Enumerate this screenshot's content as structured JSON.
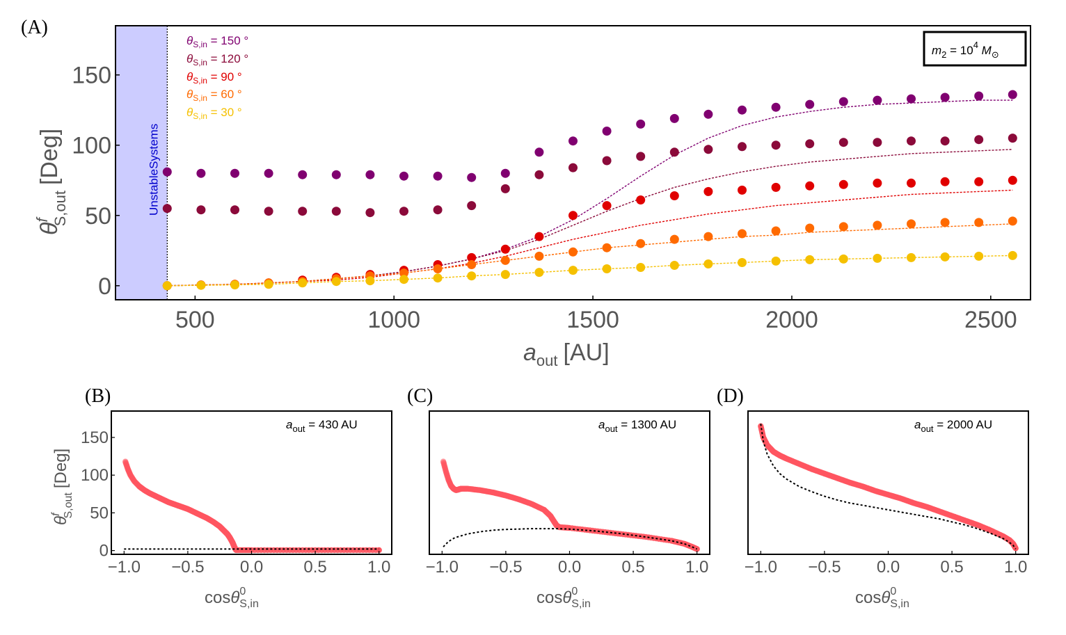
{
  "figure": {
    "panels": [
      {
        "id": "A",
        "label": "(A)"
      },
      {
        "id": "B",
        "label": "(B)"
      },
      {
        "id": "C",
        "label": "(C)"
      },
      {
        "id": "D",
        "label": "(D)"
      }
    ]
  },
  "chart_data": [
    {
      "panel": "A",
      "type": "scatter",
      "xlabel_main": "a",
      "xlabel_sub": "out",
      "xlabel_unit": "[AU]",
      "ylabel_main": "θ",
      "ylabel_sup": "f",
      "ylabel_sub": "S,out",
      "ylabel_unit": "[Deg]",
      "xlim": [
        300,
        2600
      ],
      "ylim": [
        -10,
        185
      ],
      "xticks": [
        500,
        1000,
        1500,
        2000,
        2500
      ],
      "yticks": [
        0,
        50,
        100,
        150
      ],
      "mass_label": {
        "prefix": "m",
        "sub": "2",
        "eq": " = 10",
        "sup": "4",
        "unit": " M",
        "unit_sub": "⊙"
      },
      "unstable_region": {
        "x_from": 300,
        "x_to": 430,
        "label": "UnstableSystems",
        "color": "#ccccff",
        "label_color": "#0000cc"
      },
      "x": [
        430,
        515,
        600,
        685,
        770,
        855,
        940,
        1025,
        1110,
        1195,
        1280,
        1365,
        1450,
        1535,
        1620,
        1705,
        1790,
        1875,
        1960,
        2045,
        2130,
        2215,
        2300,
        2385,
        2470,
        2555
      ],
      "series": [
        {
          "name": "150",
          "legend": "θS,in = 150 °",
          "leg_sym": "θ",
          "leg_sub": "S,in",
          "leg_val": " = 150 °",
          "color": "#800070",
          "values": [
            81,
            80,
            80,
            80,
            79,
            79,
            79,
            78,
            78,
            77,
            80,
            95,
            103,
            110,
            115,
            119,
            122,
            125,
            127,
            129,
            131,
            132,
            133,
            134,
            135,
            136
          ],
          "curve": [
            0,
            0.5,
            1,
            2,
            3,
            5,
            7,
            10,
            14,
            19,
            26,
            35,
            47,
            62,
            78,
            93,
            105,
            114,
            120,
            124,
            127,
            129,
            130,
            131,
            132,
            132
          ]
        },
        {
          "name": "120",
          "legend": "θS,in = 120 °",
          "leg_sym": "θ",
          "leg_sub": "S,in",
          "leg_val": " = 120 °",
          "color": "#8b0a3a",
          "values": [
            55,
            54,
            54,
            53,
            53,
            53,
            52,
            53,
            54,
            57,
            69,
            79,
            84,
            89,
            92,
            95,
            97,
            99,
            100,
            101,
            102,
            102,
            103,
            103,
            104,
            105
          ],
          "curve": [
            0,
            0.5,
            1,
            2,
            3,
            5,
            7,
            10,
            14,
            19,
            25,
            33,
            43,
            53,
            62,
            70,
            76,
            81,
            85,
            88,
            90,
            92,
            94,
            95,
            96,
            97
          ]
        },
        {
          "name": "90",
          "legend": "θS,in = 90 °",
          "leg_sym": "θ",
          "leg_sub": "S,in",
          "leg_val": " = 90 °",
          "color": "#e00000",
          "values": [
            0,
            0.5,
            1,
            2,
            4,
            6,
            8,
            11,
            15,
            20,
            26,
            35,
            50,
            57,
            61,
            64,
            67,
            68,
            70,
            71,
            72,
            73,
            73,
            74,
            74,
            75
          ],
          "curve": [
            0,
            0.5,
            1,
            2,
            3,
            4,
            6,
            9,
            12,
            16,
            21,
            27,
            33,
            38,
            43,
            47,
            51,
            54,
            57,
            59,
            61,
            63,
            65,
            66,
            67,
            68
          ]
        },
        {
          "name": "60",
          "legend": "θS,in = 60 °",
          "leg_sym": "θ",
          "leg_sub": "S,in",
          "leg_val": " = 60 °",
          "color": "#ff6a00",
          "values": [
            0,
            0.5,
            1,
            2,
            3,
            5,
            7,
            9,
            12,
            15,
            18,
            21,
            24,
            27,
            30,
            33,
            35,
            37,
            39,
            41,
            42,
            43,
            44,
            45,
            45,
            46
          ],
          "curve": [
            0,
            0.5,
            1,
            2,
            3,
            5,
            7,
            9,
            12,
            15,
            18,
            21,
            24,
            27,
            29,
            31,
            33,
            35,
            36,
            38,
            39,
            40,
            41,
            42,
            43,
            44
          ]
        },
        {
          "name": "30",
          "legend": "θS,in = 30 °",
          "leg_sym": "θ",
          "leg_sub": "S,in",
          "leg_val": " = 30 °",
          "color": "#f5c000",
          "values": [
            0,
            0.3,
            0.6,
            1,
            2,
            3,
            3.5,
            4.5,
            5.5,
            7,
            8,
            9.5,
            11,
            12,
            13,
            14.5,
            15.5,
            16.5,
            17.5,
            18.5,
            19,
            19.5,
            20,
            20.5,
            21,
            21.5
          ],
          "curve": [
            0,
            0.3,
            0.6,
            1,
            2,
            3,
            3.5,
            4.5,
            5.5,
            7,
            8,
            9.5,
            11,
            12,
            13,
            14.5,
            15.5,
            16.5,
            17.5,
            18.5,
            19,
            19.5,
            20,
            20.5,
            21,
            21.5
          ]
        }
      ]
    },
    {
      "panel": "B",
      "type": "scatter",
      "annotation_main": "a",
      "annotation_sub": "out",
      "annotation_val": " = 430 AU",
      "xlabel_main": "cos",
      "xlabel_sym": "θ",
      "xlabel_sup": "0",
      "xlabel_sub": "S,in",
      "ylabel_main": "θ",
      "ylabel_sup": "f",
      "ylabel_sub": "S,out",
      "ylabel_unit": "[Deg]",
      "xlim": [
        -1.1,
        1.1
      ],
      "ylim": [
        -5,
        185
      ],
      "xticks": [
        "−1.0",
        "−0.5",
        "0.0",
        "0.5",
        "1.0"
      ],
      "xtick_values": [
        -1.0,
        -0.5,
        0.0,
        0.5,
        1.0
      ],
      "yticks": [
        0,
        50,
        100,
        150
      ],
      "data_color": "#ff5560",
      "data_x": [
        -0.99,
        -0.97,
        -0.95,
        -0.92,
        -0.88,
        -0.84,
        -0.8,
        -0.75,
        -0.7,
        -0.65,
        -0.6,
        -0.55,
        -0.5,
        -0.45,
        -0.4,
        -0.35,
        -0.3,
        -0.25,
        -0.22,
        -0.19,
        -0.17,
        -0.15,
        -0.14,
        -0.13,
        -0.12,
        0.0,
        0.25,
        0.5,
        0.75,
        1.0
      ],
      "data_y": [
        118,
        108,
        100,
        92,
        85,
        80,
        76,
        72,
        68,
        64,
        61,
        58,
        55,
        51,
        47,
        43,
        38,
        32,
        27,
        22,
        17,
        11,
        7,
        3,
        0.5,
        0.5,
        0.5,
        0.5,
        0.5,
        0.5
      ],
      "theory_x": [
        -1.0,
        1.0
      ],
      "theory_y": [
        2,
        2
      ]
    },
    {
      "panel": "C",
      "type": "scatter",
      "annotation_main": "a",
      "annotation_sub": "out",
      "annotation_val": " = 1300 AU",
      "xlabel_main": "cos",
      "xlabel_sym": "θ",
      "xlabel_sup": "0",
      "xlabel_sub": "S,in",
      "xlim": [
        -1.1,
        1.1
      ],
      "ylim": [
        -5,
        185
      ],
      "xticks": [
        "−1.0",
        "−0.5",
        "0.0",
        "0.5",
        "1.0"
      ],
      "xtick_values": [
        -1.0,
        -0.5,
        0.0,
        0.5,
        1.0
      ],
      "data_color": "#ff5560",
      "data_x": [
        -0.99,
        -0.97,
        -0.95,
        -0.93,
        -0.91,
        -0.89,
        -0.87,
        -0.85,
        -0.8,
        -0.7,
        -0.6,
        -0.5,
        -0.4,
        -0.3,
        -0.2,
        -0.15,
        -0.12,
        -0.1,
        -0.08,
        0.0,
        0.2,
        0.4,
        0.6,
        0.8,
        0.9,
        0.96,
        1.0
      ],
      "data_y": [
        118,
        105,
        94,
        86,
        82,
        80,
        81,
        82,
        82,
        80,
        77,
        73,
        68,
        62,
        54,
        46,
        38,
        33,
        31,
        30,
        26,
        22,
        18,
        13,
        9,
        5,
        2
      ],
      "theory_x": [
        -0.99,
        -0.95,
        -0.9,
        -0.8,
        -0.7,
        -0.6,
        -0.5,
        -0.4,
        -0.3,
        -0.2,
        -0.1,
        0.0,
        0.2,
        0.4,
        0.6,
        0.8,
        0.9,
        0.96,
        1.0
      ],
      "theory_y": [
        5,
        12,
        17,
        22,
        25,
        27,
        28,
        28.5,
        29,
        29,
        29,
        28.5,
        26,
        22.5,
        18,
        13,
        9,
        5,
        2
      ]
    },
    {
      "panel": "D",
      "type": "scatter",
      "annotation_main": "a",
      "annotation_sub": "out",
      "annotation_val": " = 2000 AU",
      "xlabel_main": "cos",
      "xlabel_sym": "θ",
      "xlabel_sup": "0",
      "xlabel_sub": "S,in",
      "xlim": [
        -1.1,
        1.1
      ],
      "ylim": [
        -5,
        185
      ],
      "xticks": [
        "−1.0",
        "−0.5",
        "0.0",
        "0.5",
        "1.0"
      ],
      "xtick_values": [
        -1.0,
        -0.5,
        0.0,
        0.5,
        1.0
      ],
      "data_color": "#ff5560",
      "data_x": [
        -1.0,
        -0.98,
        -0.95,
        -0.9,
        -0.85,
        -0.8,
        -0.7,
        -0.6,
        -0.5,
        -0.4,
        -0.3,
        -0.2,
        -0.1,
        0.0,
        0.1,
        0.2,
        0.3,
        0.4,
        0.5,
        0.6,
        0.7,
        0.8,
        0.9,
        0.95,
        0.98,
        1.0
      ],
      "data_y": [
        165,
        150,
        140,
        131,
        126,
        122,
        115,
        108,
        102,
        96,
        90,
        85,
        79,
        74,
        69,
        63,
        58,
        52,
        46,
        40,
        34,
        27,
        19,
        14,
        9,
        3
      ],
      "theory_x": [
        -1.0,
        -0.98,
        -0.95,
        -0.9,
        -0.85,
        -0.8,
        -0.7,
        -0.6,
        -0.5,
        -0.4,
        -0.3,
        -0.2,
        -0.1,
        0.0,
        0.1,
        0.2,
        0.3,
        0.4,
        0.5,
        0.6,
        0.7,
        0.8,
        0.9,
        0.95,
        0.98,
        1.0
      ],
      "theory_y": [
        168,
        145,
        128,
        112,
        102,
        95,
        85,
        78,
        72,
        67,
        63,
        60,
        57,
        54,
        51,
        48,
        45,
        42,
        38,
        34,
        29,
        23,
        16,
        11,
        7,
        2
      ]
    }
  ]
}
